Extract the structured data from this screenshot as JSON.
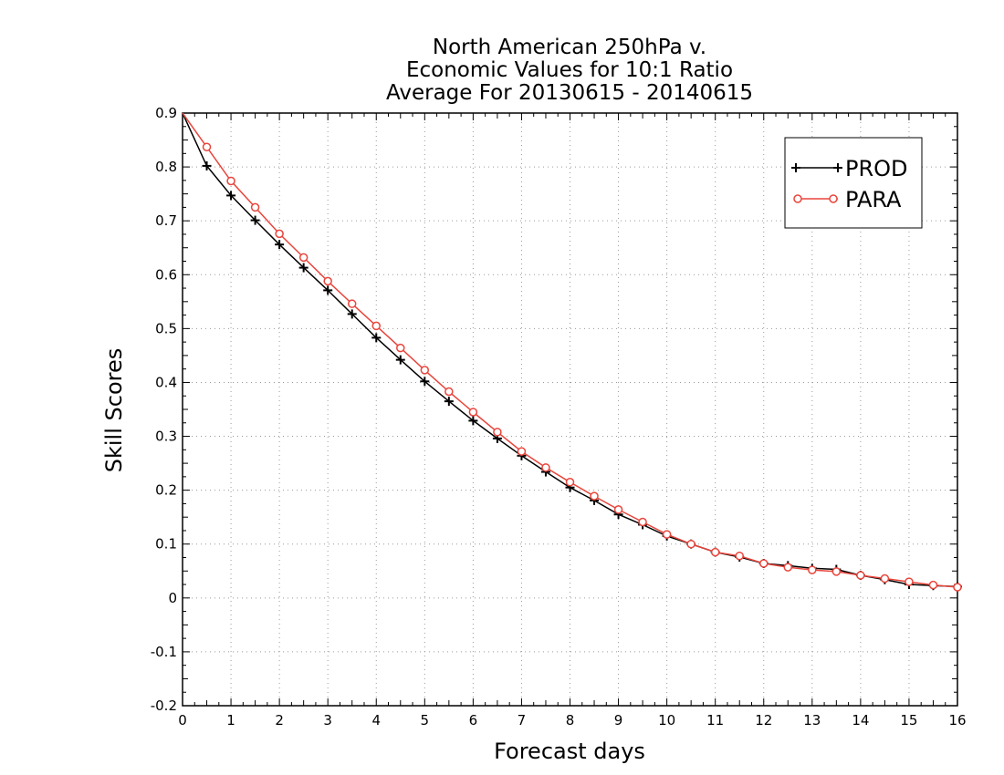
{
  "chart_data": {
    "type": "line",
    "title": [
      "North American 250hPa v.",
      "Economic Values for 10:1 Ratio",
      "Average For 20130615 - 20140615"
    ],
    "xlabel": "Forecast days",
    "ylabel": "Skill Scores",
    "xlim": [
      0,
      16
    ],
    "ylim": [
      -0.2,
      0.9
    ],
    "xticks": [
      0,
      1,
      2,
      3,
      4,
      5,
      6,
      7,
      8,
      9,
      10,
      11,
      12,
      13,
      14,
      15,
      16
    ],
    "xtick_labels": [
      "0",
      "1",
      "2",
      "3",
      "4",
      "5",
      "6",
      "7",
      "8",
      "9",
      "10",
      "11",
      "12",
      "13",
      "14",
      "15",
      "16"
    ],
    "yticks": [
      -0.2,
      -0.1,
      0,
      0.1,
      0.2,
      0.3,
      0.4,
      0.5,
      0.6,
      0.7,
      0.8,
      0.9
    ],
    "ytick_labels": [
      "-0.2",
      "-0.1",
      "0",
      "0.1",
      "0.2",
      "0.3",
      "0.4",
      "0.5",
      "0.6",
      "0.7",
      "0.8",
      "0.9"
    ],
    "grid": true,
    "legend_position": "top-right",
    "x": [
      0,
      0.5,
      1,
      1.5,
      2,
      2.5,
      3,
      3.5,
      4,
      4.5,
      5,
      5.5,
      6,
      6.5,
      7,
      7.5,
      8,
      8.5,
      9,
      9.5,
      10,
      10.5,
      11,
      11.5,
      12,
      12.5,
      13,
      13.5,
      14,
      14.5,
      15,
      15.5,
      16
    ],
    "series": [
      {
        "name": "PROD",
        "color": "#000000",
        "marker": "plus",
        "values": [
          0.9,
          0.802,
          0.747,
          0.701,
          0.656,
          0.613,
          0.571,
          0.527,
          0.483,
          0.442,
          0.402,
          0.365,
          0.329,
          0.296,
          0.264,
          0.234,
          0.205,
          0.181,
          0.155,
          0.136,
          0.115,
          0.1,
          0.085,
          0.076,
          0.064,
          0.06,
          0.055,
          0.053,
          0.042,
          0.034,
          0.025,
          0.023,
          0.021
        ]
      },
      {
        "name": "PARA",
        "color": "#e8453c",
        "marker": "circle",
        "values": [
          0.9,
          0.837,
          0.774,
          0.725,
          0.676,
          0.632,
          0.588,
          0.546,
          0.505,
          0.464,
          0.423,
          0.383,
          0.345,
          0.308,
          0.272,
          0.242,
          0.215,
          0.189,
          0.164,
          0.141,
          0.118,
          0.1,
          0.085,
          0.078,
          0.064,
          0.057,
          0.052,
          0.049,
          0.042,
          0.036,
          0.03,
          0.024,
          0.02
        ]
      }
    ]
  }
}
